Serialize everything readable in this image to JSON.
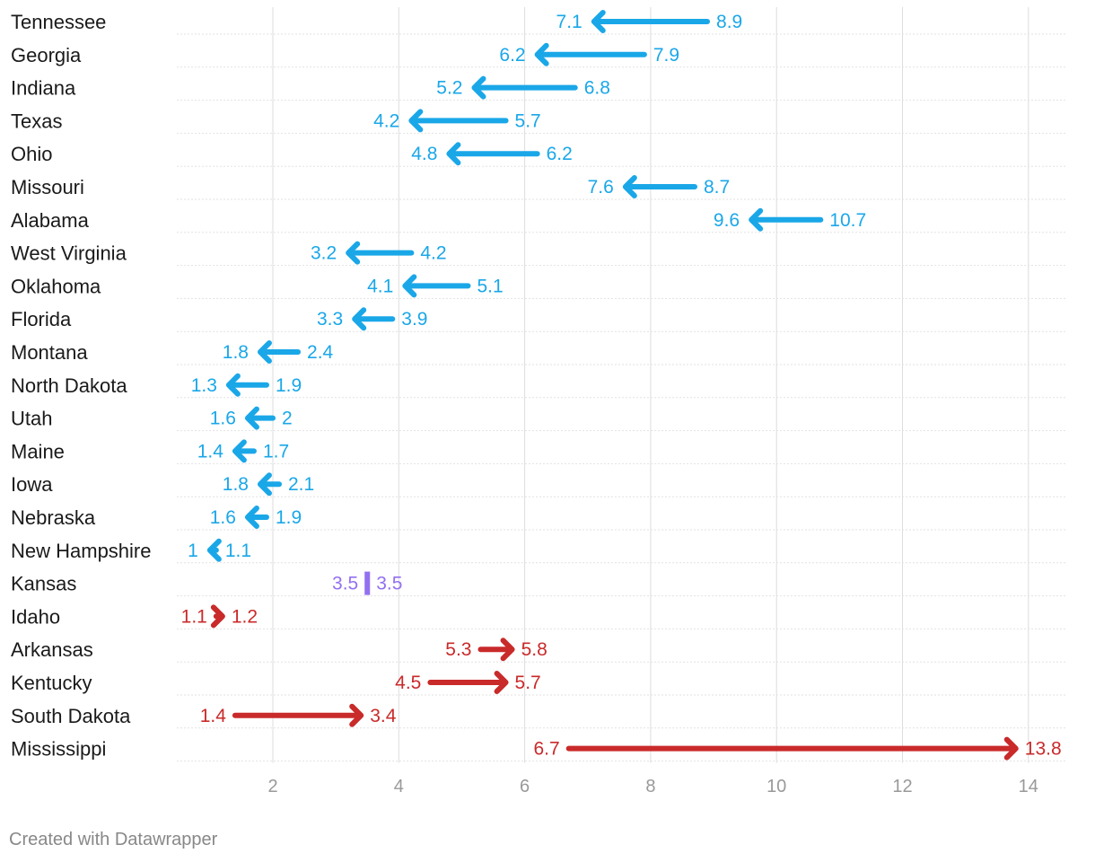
{
  "chart_data": {
    "type": "arrow",
    "title": "",
    "xlabel": "",
    "ylabel": "",
    "xlim": [
      0.5,
      14.6
    ],
    "x_ticks": [
      2,
      4,
      6,
      8,
      10,
      12,
      14
    ],
    "grid": "vertical",
    "colors": {
      "decrease": "#1AA7E8",
      "increase": "#C92A2A",
      "same": "#9370F0",
      "label": "#1a1a1a",
      "tick": "#999999",
      "grid": "#dddddd"
    },
    "rows": [
      {
        "label": "Tennessee",
        "from": 8.9,
        "to": 7.1,
        "from_label": "8.9",
        "to_label": "7.1"
      },
      {
        "label": "Georgia",
        "from": 7.9,
        "to": 6.2,
        "from_label": "7.9",
        "to_label": "6.2"
      },
      {
        "label": "Indiana",
        "from": 6.8,
        "to": 5.2,
        "from_label": "6.8",
        "to_label": "5.2"
      },
      {
        "label": "Texas",
        "from": 5.7,
        "to": 4.2,
        "from_label": "5.7",
        "to_label": "4.2"
      },
      {
        "label": "Ohio",
        "from": 6.2,
        "to": 4.8,
        "from_label": "6.2",
        "to_label": "4.8"
      },
      {
        "label": "Missouri",
        "from": 8.7,
        "to": 7.6,
        "from_label": "8.7",
        "to_label": "7.6"
      },
      {
        "label": "Alabama",
        "from": 10.7,
        "to": 9.6,
        "from_label": "10.7",
        "to_label": "9.6"
      },
      {
        "label": "West Virginia",
        "from": 4.2,
        "to": 3.2,
        "from_label": "4.2",
        "to_label": "3.2"
      },
      {
        "label": "Oklahoma",
        "from": 5.1,
        "to": 4.1,
        "from_label": "5.1",
        "to_label": "4.1"
      },
      {
        "label": "Florida",
        "from": 3.9,
        "to": 3.3,
        "from_label": "3.9",
        "to_label": "3.3"
      },
      {
        "label": "Montana",
        "from": 2.4,
        "to": 1.8,
        "from_label": "2.4",
        "to_label": "1.8"
      },
      {
        "label": "North Dakota",
        "from": 1.9,
        "to": 1.3,
        "from_label": "1.9",
        "to_label": "1.3"
      },
      {
        "label": "Utah",
        "from": 2.0,
        "to": 1.6,
        "from_label": "2",
        "to_label": "1.6"
      },
      {
        "label": "Maine",
        "from": 1.7,
        "to": 1.4,
        "from_label": "1.7",
        "to_label": "1.4"
      },
      {
        "label": "Iowa",
        "from": 2.1,
        "to": 1.8,
        "from_label": "2.1",
        "to_label": "1.8"
      },
      {
        "label": "Nebraska",
        "from": 1.9,
        "to": 1.6,
        "from_label": "1.9",
        "to_label": "1.6"
      },
      {
        "label": "New Hampshire",
        "from": 1.1,
        "to": 1.0,
        "from_label": "1.1",
        "to_label": "1"
      },
      {
        "label": "Kansas",
        "from": 3.5,
        "to": 3.5,
        "from_label": "3.5",
        "to_label": "3.5"
      },
      {
        "label": "Idaho",
        "from": 1.1,
        "to": 1.2,
        "from_label": "1.1",
        "to_label": "1.2"
      },
      {
        "label": "Arkansas",
        "from": 5.3,
        "to": 5.8,
        "from_label": "5.3",
        "to_label": "5.8"
      },
      {
        "label": "Kentucky",
        "from": 4.5,
        "to": 5.7,
        "from_label": "4.5",
        "to_label": "5.7"
      },
      {
        "label": "South Dakota",
        "from": 1.4,
        "to": 3.4,
        "from_label": "1.4",
        "to_label": "3.4"
      },
      {
        "label": "Mississippi",
        "from": 6.7,
        "to": 13.8,
        "from_label": "6.7",
        "to_label": "13.8"
      }
    ]
  },
  "footer": {
    "text": "Created with Datawrapper"
  }
}
